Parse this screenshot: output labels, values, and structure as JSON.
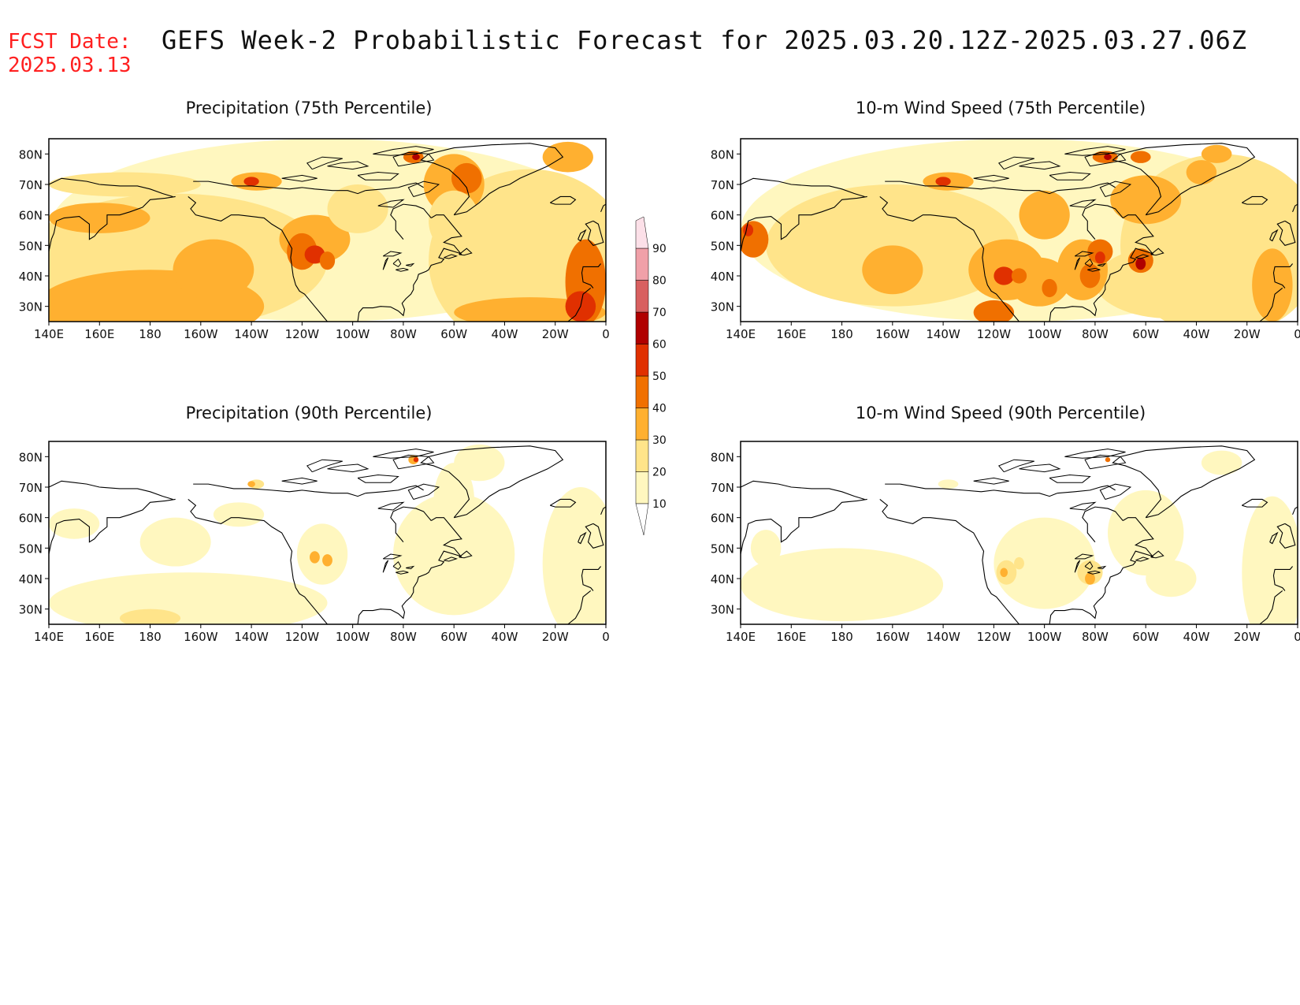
{
  "header": {
    "fcst_label": "FCST Date:",
    "fcst_date": "2025.03.13",
    "title": "GEFS Week-2 Probabilistic Forecast for 2025.03.20.12Z-2025.03.27.06Z"
  },
  "colors": {
    "background": "#ffffff",
    "title_red": "#ff2020",
    "levels": [
      "#fff7bf",
      "#ffe48a",
      "#ffb030",
      "#f07000",
      "#e03000",
      "#b00000",
      "#d86060",
      "#f0a0a8",
      "#fce0e8"
    ]
  },
  "colorbar": {
    "labels": [
      "10",
      "20",
      "30",
      "40",
      "50",
      "60",
      "70",
      "80",
      "90"
    ]
  },
  "axes": {
    "lon_labels": [
      "140E",
      "160E",
      "180",
      "160W",
      "140W",
      "120W",
      "100W",
      "80W",
      "60W",
      "40W",
      "20W",
      "0"
    ],
    "lat_labels": [
      "80N",
      "70N",
      "60N",
      "50N",
      "40N",
      "30N"
    ]
  },
  "panels": [
    {
      "title": "Precipitation (75th Percentile)"
    },
    {
      "title": "10-m Wind Speed (75th Percentile)"
    },
    {
      "title": "Precipitation (90th Percentile)"
    },
    {
      "title": "10-m Wind Speed (90th Percentile)"
    }
  ]
}
